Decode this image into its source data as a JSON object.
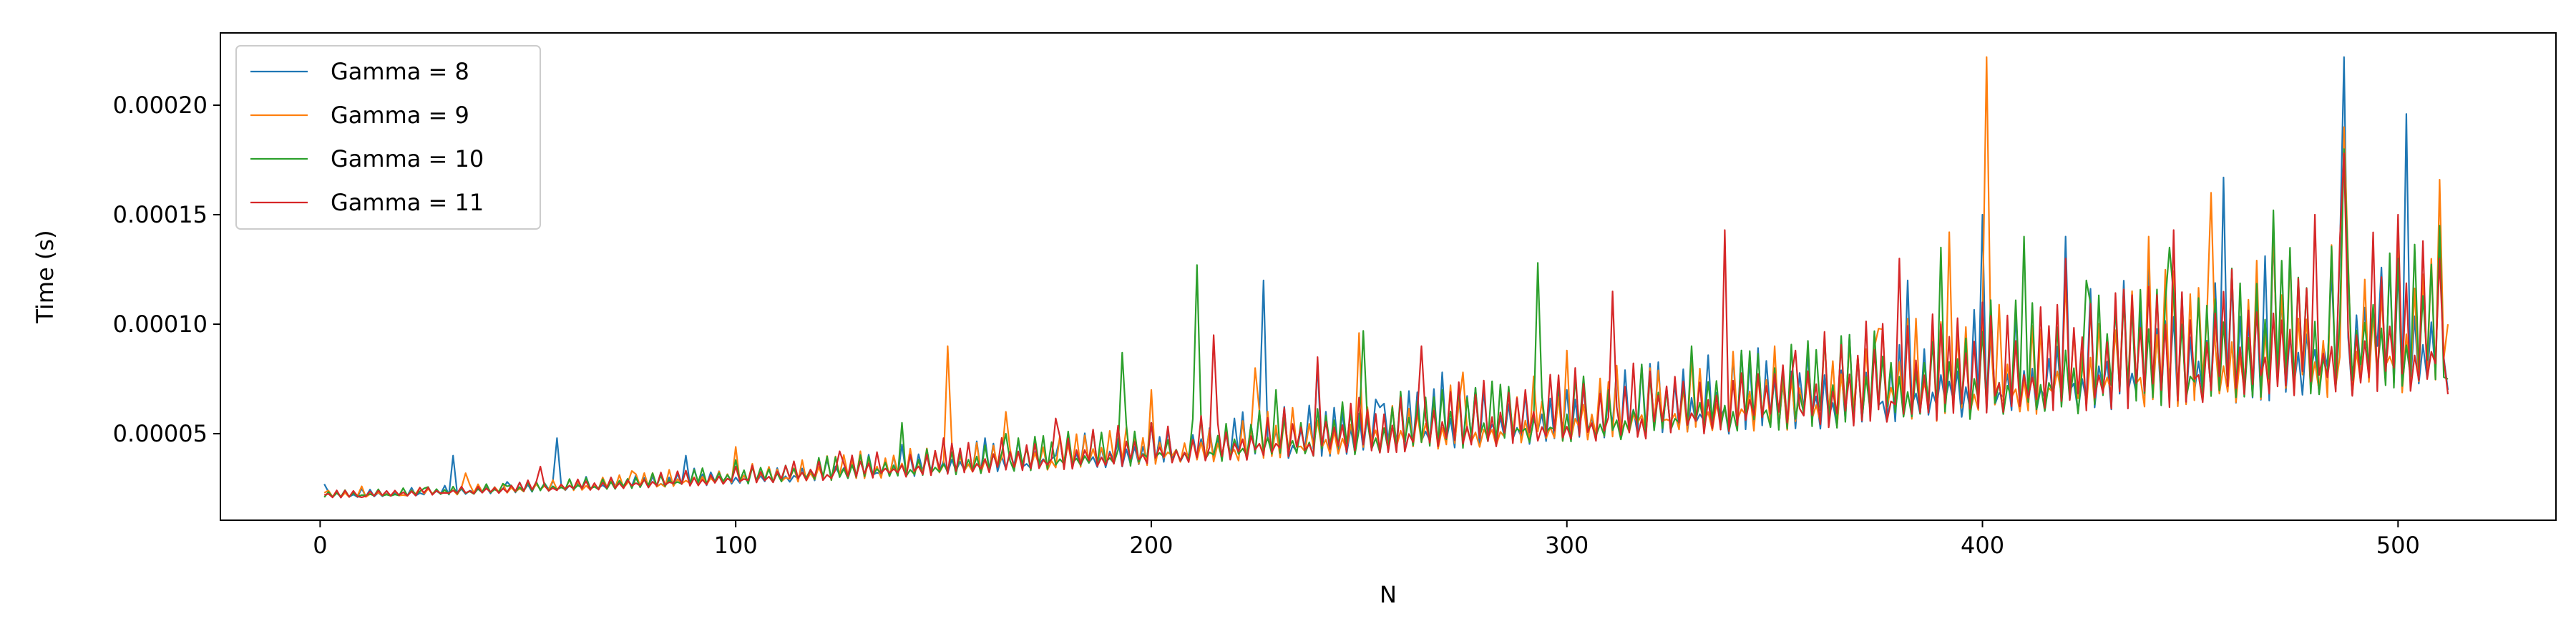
{
  "chart_data": {
    "type": "line",
    "title": "",
    "xlabel": "N",
    "ylabel": "Time (s)",
    "xlim": [
      -24,
      538
    ],
    "ylim": [
      1.05e-05,
      0.000233
    ],
    "xticks": [
      0,
      100,
      200,
      300,
      400,
      500
    ],
    "xtick_labels": [
      "0",
      "100",
      "200",
      "300",
      "400",
      "500"
    ],
    "yticks": [
      5e-05,
      0.0001,
      0.00015,
      0.0002
    ],
    "ytick_labels": [
      "0.00005",
      "0.00010",
      "0.00015",
      "0.00020"
    ],
    "grid": false,
    "legend_position": "top-left",
    "series_note": "",
    "series": [
      {
        "name": "Gamma = 8",
        "color": "#1f77b4",
        "points": [
          [
            1,
            2.7e-05
          ],
          [
            10,
            2.5e-05
          ],
          [
            20,
            2.2e-05
          ],
          [
            32,
            4e-05
          ],
          [
            45,
            2.8e-05
          ],
          [
            57,
            4.8e-05
          ],
          [
            70,
            3e-05
          ],
          [
            88,
            4e-05
          ],
          [
            100,
            3e-05
          ],
          [
            120,
            3.8e-05
          ],
          [
            140,
            4.5e-05
          ],
          [
            160,
            4.8e-05
          ],
          [
            177,
            4e-05
          ],
          [
            200,
            5.5e-05
          ],
          [
            220,
            5.7e-05
          ],
          [
            227,
            0.00012
          ],
          [
            240,
            8.2e-05
          ],
          [
            255,
            6.2e-05
          ],
          [
            270,
            7.8e-05
          ],
          [
            300,
            7e-05
          ],
          [
            320,
            8.2e-05
          ],
          [
            350,
            7.5e-05
          ],
          [
            370,
            8.5e-05
          ],
          [
            382,
            0.00012
          ],
          [
            400,
            0.00015
          ],
          [
            420,
            0.00014
          ],
          [
            440,
            0.00013
          ],
          [
            458,
            0.000167
          ],
          [
            470,
            0.000142
          ],
          [
            487,
            0.000222
          ],
          [
            495,
            9e-05
          ],
          [
            502,
            0.000196
          ],
          [
            510,
            0.00014
          ],
          [
            512,
            7e-05
          ]
        ]
      },
      {
        "name": "Gamma = 9",
        "color": "#ff7f0e",
        "points": [
          [
            1,
            2.3e-05
          ],
          [
            10,
            2.6e-05
          ],
          [
            20,
            2.2e-05
          ],
          [
            35,
            3.2e-05
          ],
          [
            50,
            2.8e-05
          ],
          [
            75,
            3.3e-05
          ],
          [
            100,
            4.4e-05
          ],
          [
            130,
            4.2e-05
          ],
          [
            151,
            9e-05
          ],
          [
            165,
            6e-05
          ],
          [
            180,
            4.5e-05
          ],
          [
            200,
            7e-05
          ],
          [
            225,
            8e-05
          ],
          [
            250,
            9.6e-05
          ],
          [
            275,
            7.8e-05
          ],
          [
            300,
            8.8e-05
          ],
          [
            320,
            8e-05
          ],
          [
            350,
            9e-05
          ],
          [
            375,
            9.8e-05
          ],
          [
            392,
            0.000142
          ],
          [
            401,
            0.000222
          ],
          [
            420,
            0.00012
          ],
          [
            440,
            0.00014
          ],
          [
            455,
            0.00016
          ],
          [
            470,
            0.000145
          ],
          [
            487,
            0.00019
          ],
          [
            500,
            0.00014
          ],
          [
            510,
            0.000166
          ],
          [
            512,
            0.0001
          ]
        ]
      },
      {
        "name": "Gamma = 10",
        "color": "#2ca02c",
        "points": [
          [
            1,
            2.1e-05
          ],
          [
            10,
            2.2e-05
          ],
          [
            25,
            2.5e-05
          ],
          [
            45,
            2.6e-05
          ],
          [
            70,
            2.8e-05
          ],
          [
            100,
            3.8e-05
          ],
          [
            140,
            5.5e-05
          ],
          [
            165,
            5e-05
          ],
          [
            193,
            8.7e-05
          ],
          [
            200,
            5.5e-05
          ],
          [
            211,
            0.000127
          ],
          [
            230,
            7e-05
          ],
          [
            251,
            9.7e-05
          ],
          [
            270,
            7e-05
          ],
          [
            293,
            0.000128
          ],
          [
            310,
            7e-05
          ],
          [
            330,
            9e-05
          ],
          [
            350,
            8e-05
          ],
          [
            370,
            8.5e-05
          ],
          [
            390,
            0.000135
          ],
          [
            410,
            0.00014
          ],
          [
            425,
            0.00012
          ],
          [
            445,
            0.000135
          ],
          [
            470,
            0.000152
          ],
          [
            487,
            0.00018
          ],
          [
            500,
            0.00013
          ],
          [
            510,
            0.000145
          ],
          [
            512,
            7.5e-05
          ]
        ]
      },
      {
        "name": "Gamma = 11",
        "color": "#d62728",
        "points": [
          [
            1,
            2.2e-05
          ],
          [
            10,
            2.1e-05
          ],
          [
            25,
            2.3e-05
          ],
          [
            40,
            2.5e-05
          ],
          [
            53,
            3.5e-05
          ],
          [
            70,
            3e-05
          ],
          [
            100,
            3.5e-05
          ],
          [
            125,
            4.2e-05
          ],
          [
            150,
            4.8e-05
          ],
          [
            177,
            5.7e-05
          ],
          [
            200,
            5.5e-05
          ],
          [
            215,
            9.5e-05
          ],
          [
            240,
            8.5e-05
          ],
          [
            265,
            9e-05
          ],
          [
            290,
            7e-05
          ],
          [
            311,
            0.000115
          ],
          [
            338,
            0.000143
          ],
          [
            355,
            8.8e-05
          ],
          [
            380,
            0.00013
          ],
          [
            400,
            0.00011
          ],
          [
            420,
            0.00013
          ],
          [
            446,
            0.000143
          ],
          [
            460,
            0.000125
          ],
          [
            480,
            0.00015
          ],
          [
            487,
            0.000178
          ],
          [
            500,
            0.00015
          ],
          [
            510,
            0.00013
          ],
          [
            512,
            6.8e-05
          ]
        ]
      }
    ]
  }
}
